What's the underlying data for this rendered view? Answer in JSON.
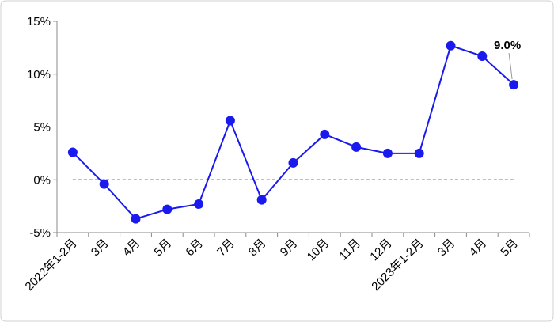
{
  "chart_data": {
    "type": "line",
    "categories": [
      "2022年1-2月",
      "3月",
      "4月",
      "5月",
      "6月",
      "7月",
      "8月",
      "9月",
      "10月",
      "11月",
      "12月",
      "2023年1-2月",
      "3月",
      "4月",
      "5月"
    ],
    "series": [
      {
        "color": "#1a1aee",
        "values": [
          2.6,
          -0.4,
          -3.7,
          -2.8,
          -2.3,
          5.6,
          -1.9,
          1.6,
          4.3,
          3.1,
          2.5,
          2.5,
          12.7,
          11.7,
          9.0
        ],
        "value_labels": [
          null,
          null,
          null,
          null,
          null,
          null,
          null,
          null,
          null,
          null,
          null,
          null,
          null,
          null,
          "9.0%"
        ]
      }
    ],
    "ylim": [
      -5,
      15
    ],
    "yticks": [
      {
        "value": -5,
        "label": "-5%"
      },
      {
        "value": 0,
        "label": "0%"
      },
      {
        "value": 5,
        "label": "5%"
      },
      {
        "value": 10,
        "label": "10%"
      },
      {
        "value": 15,
        "label": "15%"
      }
    ],
    "zero_line": "dashed"
  }
}
